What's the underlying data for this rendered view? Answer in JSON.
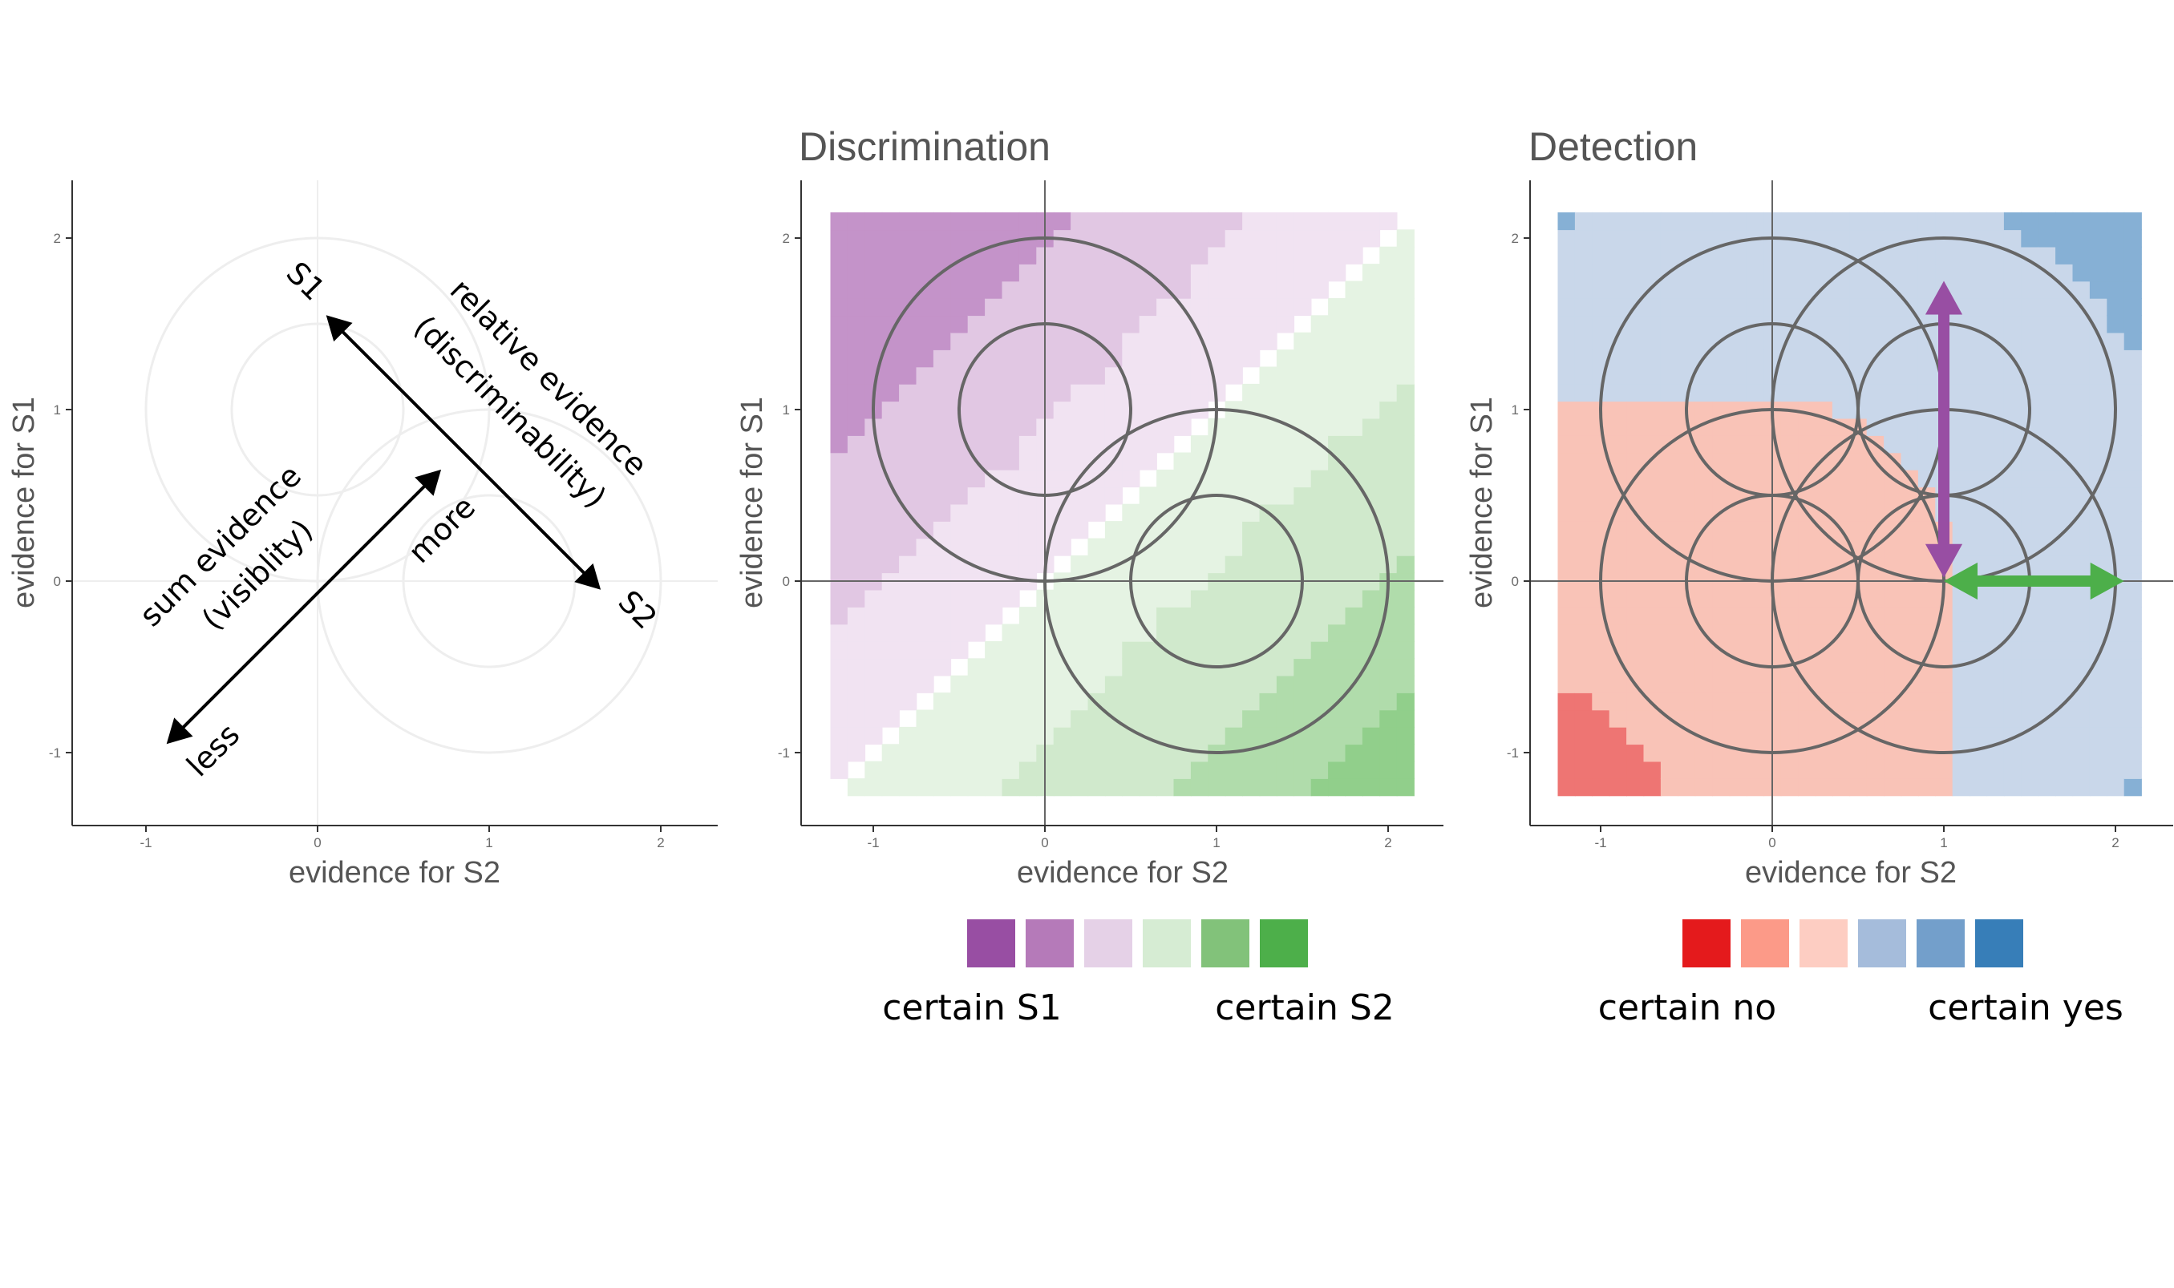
{
  "chart_data": [
    {
      "type": "diagram",
      "title": "",
      "xlabel": "evidence for S2",
      "ylabel": "evidence for S1",
      "xlim": [
        -1.4,
        2.3
      ],
      "ylim": [
        -1.42,
        2.3
      ],
      "xticks": [
        -1,
        0,
        1,
        2
      ],
      "yticks": [
        -1,
        0,
        1,
        2
      ],
      "circles": [
        {
          "cx": 0,
          "cy": 1,
          "radii": [
            0.5,
            1.0
          ]
        },
        {
          "cx": 1,
          "cy": 0,
          "radii": [
            0.5,
            1.0
          ]
        }
      ],
      "arrows": [
        {
          "from": [
            1.65,
            -0.05
          ],
          "to": [
            0.05,
            1.55
          ],
          "double": true,
          "label": "relative evidence (discriminability)"
        },
        {
          "from": [
            -0.88,
            -0.95
          ],
          "to": [
            0.72,
            0.65
          ],
          "double": true,
          "label": "sum evidence (visiblity)"
        }
      ],
      "annotations": {
        "s1": "S1",
        "s2": "S2",
        "relative_line1": "relative evidence",
        "relative_line2": "(discriminability)",
        "sum_line1": "sum evidence",
        "sum_line2": "(visiblity)",
        "more": "more",
        "less": "less"
      }
    },
    {
      "type": "heatmap",
      "title": "Discrimination",
      "xlabel": "evidence for S2",
      "ylabel": "evidence for S1",
      "xlim": [
        -1.4,
        2.3
      ],
      "ylim": [
        -1.42,
        2.3
      ],
      "xticks": [
        -1,
        0,
        1,
        2
      ],
      "yticks": [
        -1,
        0,
        1,
        2
      ],
      "grid_range": [
        -1.25,
        2.15
      ],
      "colors": [
        "#c493c9",
        "#e1c7e3",
        "#f1e3f2",
        "#e5f3e3",
        "#d0e9cc",
        "#b0dcab",
        "#91cf8b"
      ],
      "circles": [
        {
          "cx": 0,
          "cy": 1,
          "radii": [
            0.5,
            1.0
          ]
        },
        {
          "cx": 1,
          "cy": 0,
          "radii": [
            0.5,
            1.0
          ]
        }
      ],
      "legend": {
        "colors": [
          "#984ea3",
          "#b57ab9",
          "#e5d1e7",
          "#d6ecd3",
          "#82c27a",
          "#4daf4a"
        ],
        "left_label": "certain S1",
        "right_label": "certain S2"
      }
    },
    {
      "type": "heatmap",
      "title": "Detection",
      "xlabel": "evidence for S2",
      "ylabel": "evidence for S1",
      "xlim": [
        -1.4,
        2.3
      ],
      "ylim": [
        -1.42,
        2.3
      ],
      "xticks": [
        -1,
        0,
        1,
        2
      ],
      "yticks": [
        -1,
        0,
        1,
        2
      ],
      "grid_range": [
        -1.25,
        2.15
      ],
      "colors": [
        "#ee7573",
        "#f9c3b7",
        "#c9d7ea",
        "#86b0d5"
      ],
      "circles": [
        {
          "cx": 0,
          "cy": 1,
          "radii": [
            0.5,
            1.0
          ]
        },
        {
          "cx": 1,
          "cy": 1,
          "radii": [
            0.5,
            1.0
          ]
        },
        {
          "cx": 0,
          "cy": 0,
          "radii": [
            0.5,
            1.0
          ]
        },
        {
          "cx": 1,
          "cy": 0,
          "radii": [
            0.5,
            1.0
          ]
        }
      ],
      "arrows": [
        {
          "from": [
            1,
            0.02
          ],
          "to": [
            1,
            1.75
          ],
          "color": "#984ea3",
          "double": true
        },
        {
          "from": [
            1.0,
            0
          ],
          "to": [
            2.05,
            0
          ],
          "color": "#4daf4a",
          "double": true
        }
      ],
      "legend": {
        "colors": [
          "#e41a1c",
          "#fc9a88",
          "#fdcdc2",
          "#a5bcdb",
          "#739fcb",
          "#377eb8"
        ],
        "left_label": "certain no",
        "right_label": "certain yes"
      }
    }
  ]
}
